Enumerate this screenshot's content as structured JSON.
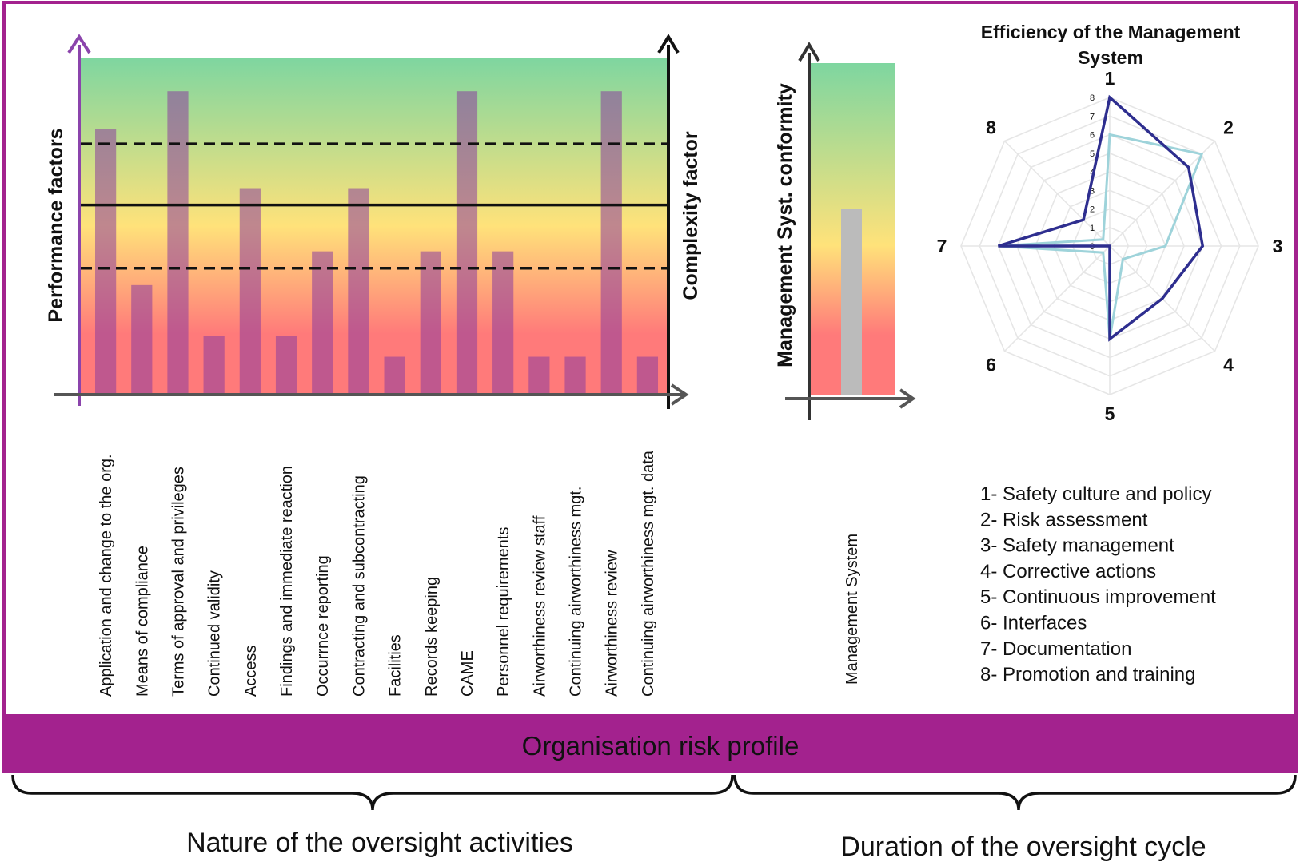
{
  "colors": {
    "frame": "#A3228E",
    "banner_bg": "#A3228E",
    "banner_text": "#ffffff",
    "bar_fill": "#8B3C9E",
    "ms_bar_fill": "#BBBBBB",
    "gradient_top": "#7ED6A0",
    "gradient_mid": "#FFE27A",
    "gradient_bottom": "#FF7A7A",
    "perf_axis": "#8B44AC",
    "radar_outer": "#2E2E8F",
    "radar_inner": "#9ED3DA",
    "grid": "#E6E6E6"
  },
  "banner": {
    "text": "Organisation risk profile"
  },
  "footer": {
    "left": "Nature of the oversight activities",
    "right": "Duration of the oversight cycle"
  },
  "chart_data": [
    {
      "type": "bar",
      "ylabel": "Performance factors",
      "y2label": "Complexity factor",
      "ylim": [
        0,
        8
      ],
      "categories": [
        "Application and change to the org.",
        "Means of compliance",
        "Terms of approval and privileges",
        "Continued validity",
        "Access",
        "Findings and immediate reaction",
        "Occurrnce reporting",
        "Contracting and subcontracting",
        "Facilities",
        "Records keeping",
        "CAME",
        "Personnel requirements",
        "Airworthiness review staff",
        "Continuing airworthiness mgt.",
        "Airworthiness review",
        "Continuing airworthiness mgt. data"
      ],
      "values": [
        6.3,
        2.6,
        7.2,
        1.4,
        4.9,
        1.4,
        3.4,
        4.9,
        0.9,
        3.4,
        7.2,
        3.4,
        0.9,
        0.9,
        7.2,
        0.9
      ],
      "reference_lines": {
        "solid": 4.5,
        "dashed": [
          3.0,
          5.95
        ]
      },
      "background": "gradient green (top) to yellow to red (bottom)"
    },
    {
      "type": "bar",
      "ylabel": "Management Syst. conformity",
      "categories": [
        "Management System"
      ],
      "values": [
        5.6
      ],
      "ylim": [
        0,
        10
      ]
    },
    {
      "type": "radar",
      "title": "Efficiency of the Management System",
      "axes": [
        "1",
        "2",
        "3",
        "4",
        "5",
        "6",
        "7",
        "8"
      ],
      "rlim": [
        0,
        8
      ],
      "ticks": [
        "0",
        "1",
        "2",
        "3",
        "4",
        "5",
        "6",
        "7",
        "8"
      ],
      "series": [
        {
          "values": [
            8,
            6,
            5,
            4,
            5,
            0,
            6,
            2
          ]
        },
        {
          "values": [
            6,
            7,
            3,
            1,
            5,
            0.5,
            6,
            0.5
          ]
        }
      ],
      "legend": [
        "1- Safety culture and policy",
        "2- Risk assessment",
        "3- Safety management",
        "4- Corrective actions",
        "5- Continuous  improvement",
        "6- Interfaces",
        "7- Documentation",
        "8- Promotion and training"
      ]
    }
  ]
}
